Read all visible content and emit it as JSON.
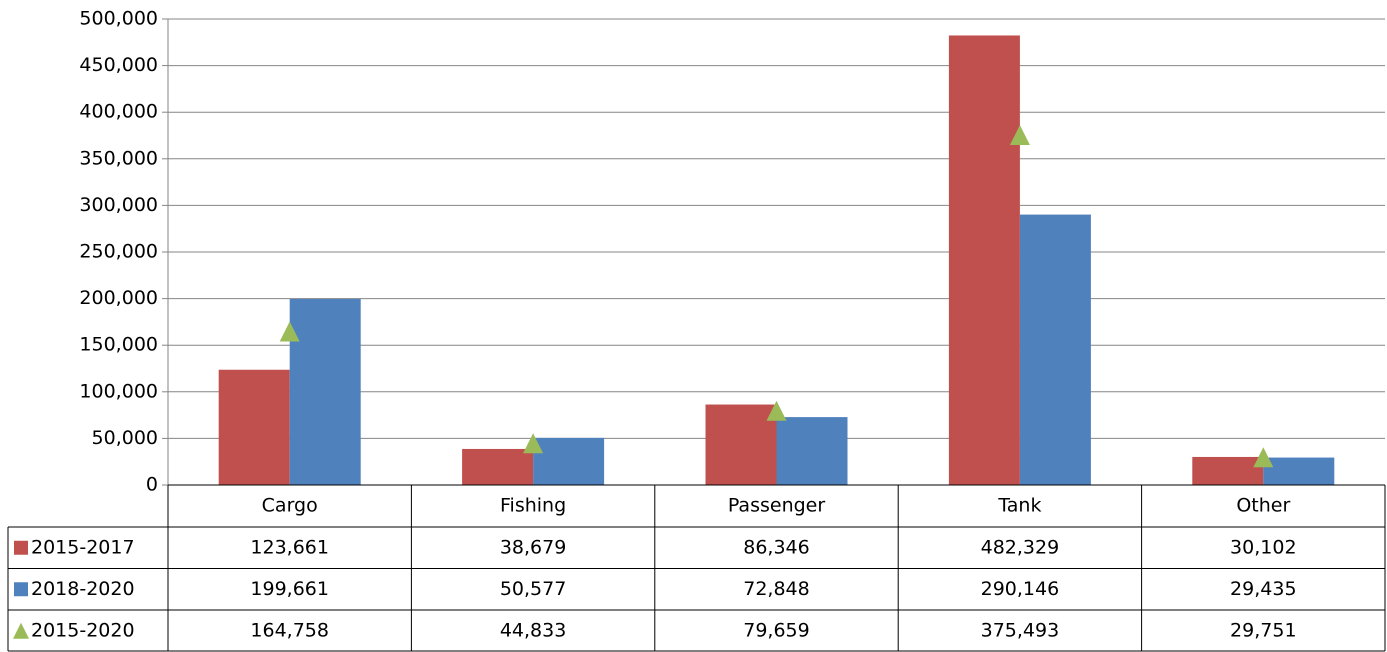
{
  "chart_data": {
    "type": "bar",
    "categories": [
      "Cargo",
      "Fishing",
      "Passenger",
      "Tank",
      "Other"
    ],
    "series": [
      {
        "name": "2015-2017",
        "color": "#c0504d",
        "values": [
          123661,
          38679,
          86346,
          482329,
          30102
        ],
        "value_labels": [
          "123,661",
          "38,679",
          "86,346",
          "482,329",
          "30,102"
        ]
      },
      {
        "name": "2018-2020",
        "color": "#4f81bd",
        "values": [
          199661,
          50577,
          72848,
          290146,
          29435
        ],
        "value_labels": [
          "199,661",
          "50,577",
          "72,848",
          "290,146",
          "29,435"
        ]
      },
      {
        "name": "2015-2020",
        "color": "#9bbb59",
        "marker": "triangle",
        "values": [
          164758,
          44833,
          79659,
          375493,
          29751
        ],
        "value_labels": [
          "164,758",
          "44,833",
          "79,659",
          "375,493",
          "29,751"
        ]
      }
    ],
    "ylim": [
      0,
      500000
    ],
    "yticks": [
      0,
      {
        "value": 50000,
        "label": "50,000"
      },
      {
        "value": 100000,
        "label": "100,000"
      },
      {
        "value": 150000,
        "label": "150,000"
      },
      {
        "value": 200000,
        "label": "200,000"
      },
      {
        "value": 250000,
        "label": "250,000"
      },
      {
        "value": 300000,
        "label": "300,000"
      },
      {
        "value": 350000,
        "label": "350,000"
      },
      {
        "value": 400000,
        "label": "400,000"
      },
      {
        "value": 450000,
        "label": "450,000"
      },
      {
        "value": 500000,
        "label": "500,000"
      }
    ],
    "grid": true,
    "data_table": true
  }
}
